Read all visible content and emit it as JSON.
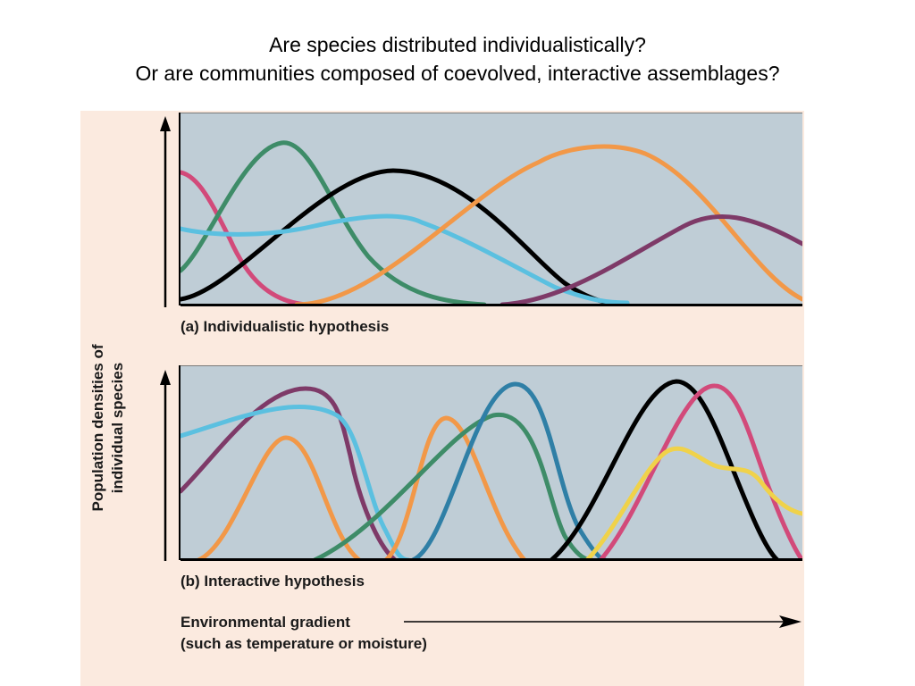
{
  "slide": {
    "title_line_1": "Are species distributed individualistically?",
    "title_line_2": "Or are communities composed of coevolved, interactive assemblages?"
  },
  "figure": {
    "y_axis_label_line_1": "Population densities of",
    "y_axis_label_line_2": "individual species",
    "panel_a_caption": "(a) Individualistic hypothesis",
    "panel_b_caption": "(b) Interactive hypothesis",
    "x_axis_label_line_1": "Environmental gradient",
    "x_axis_label_line_2": "(such as temperature or moisture)",
    "panel_a_curve_colors": [
      "#d24a7a",
      "#3e8c68",
      "#000000",
      "#5bc0e0",
      "#f29848",
      "#7e3a68"
    ],
    "panel_b_curve_colors": [
      "#7e3a68",
      "#5bc0e0",
      "#f29848",
      "#3e8c68",
      "#2f7fa6",
      "#000000",
      "#d24a7a",
      "#f0d24a"
    ],
    "colors": {
      "figure_background": "#fbeadf",
      "plot_background": "#bfcdd6"
    }
  }
}
